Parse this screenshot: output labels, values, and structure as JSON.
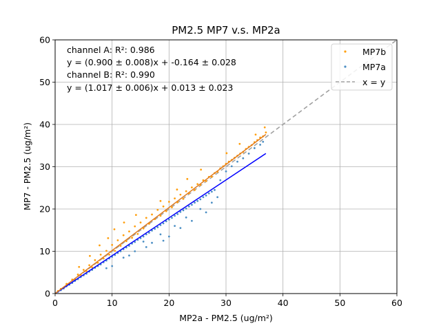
{
  "chart_data": {
    "type": "scatter",
    "title": "PM2.5 MP7 v.s. MP2a",
    "xlabel": "MP2a - PM2.5 (ug/m²)",
    "ylabel": "MP7 - PM2.5 (ug/m²)",
    "xlim": [
      0,
      60
    ],
    "ylim": [
      0,
      60
    ],
    "xticks": [
      "0",
      "10",
      "20",
      "30",
      "40",
      "50",
      "60"
    ],
    "yticks": [
      "0",
      "10",
      "20",
      "30",
      "40",
      "50",
      "60"
    ],
    "grid": true,
    "legend_position": "top-right",
    "annotations": [
      "channel A: R²: 0.986",
      "y = (0.900 ± 0.008)x + -0.164 ± 0.028",
      "channel B: R²: 0.990",
      "y = (1.017 ± 0.006)x + 0.013 ± 0.023"
    ],
    "series": [
      {
        "name": "MP7b",
        "kind": "scatter",
        "color": "#ff9f0f",
        "points": [
          [
            0.5,
            0.6
          ],
          [
            1,
            1.1
          ],
          [
            1.5,
            1.4
          ],
          [
            2,
            2.3
          ],
          [
            2.5,
            2.4
          ],
          [
            3,
            3.3
          ],
          [
            3.5,
            3.4
          ],
          [
            4,
            4.5
          ],
          [
            4.5,
            4.4
          ],
          [
            5,
            5.6
          ],
          [
            5.5,
            5.3
          ],
          [
            6,
            6.7
          ],
          [
            6.5,
            6.2
          ],
          [
            7,
            7.9
          ],
          [
            7.5,
            7.3
          ],
          [
            8,
            9.2
          ],
          [
            8.5,
            8.3
          ],
          [
            9,
            10.1
          ],
          [
            9.5,
            9.2
          ],
          [
            10,
            11.5
          ],
          [
            10.5,
            10.1
          ],
          [
            11,
            12.6
          ],
          [
            11.5,
            11.3
          ],
          [
            12,
            13.8
          ],
          [
            12.5,
            12.4
          ],
          [
            13,
            14.7
          ],
          [
            13.5,
            13.2
          ],
          [
            14,
            15.9
          ],
          [
            14.5,
            14.1
          ],
          [
            15,
            16.8
          ],
          [
            15.5,
            15.4
          ],
          [
            16,
            17.9
          ],
          [
            16.5,
            16.5
          ],
          [
            17,
            18.7
          ],
          [
            17.5,
            17.6
          ],
          [
            18,
            19.8
          ],
          [
            18.5,
            18.4
          ],
          [
            19,
            20.6
          ],
          [
            19.5,
            19.5
          ],
          [
            20,
            21.7
          ],
          [
            20.5,
            20.4
          ],
          [
            21,
            22.5
          ],
          [
            21.5,
            21.6
          ],
          [
            22,
            23.4
          ],
          [
            22.5,
            22.4
          ],
          [
            23,
            24.2
          ],
          [
            23.5,
            23.7
          ],
          [
            24,
            25.1
          ],
          [
            24.5,
            24.5
          ],
          [
            25,
            25.9
          ],
          [
            25.5,
            25.7
          ],
          [
            26,
            26.8
          ],
          [
            26.5,
            26.6
          ],
          [
            27,
            27.6
          ],
          [
            27.5,
            27.6
          ],
          [
            28,
            28.5
          ],
          [
            28.5,
            28.8
          ],
          [
            29,
            29.6
          ],
          [
            29.5,
            30.1
          ],
          [
            30,
            30.7
          ],
          [
            30.5,
            31.2
          ],
          [
            31,
            31.6
          ],
          [
            31.5,
            32.1
          ],
          [
            32,
            32.6
          ],
          [
            32.5,
            33.1
          ],
          [
            33,
            33.5
          ],
          [
            33.5,
            34.2
          ],
          [
            34,
            34.7
          ],
          [
            34.5,
            35.1
          ],
          [
            35,
            35.8
          ],
          [
            35.5,
            36.3
          ],
          [
            36,
            36.9
          ],
          [
            36.5,
            37.2
          ],
          [
            37,
            38.1
          ],
          [
            7.8,
            11.4
          ],
          [
            10.4,
            15.2
          ],
          [
            12.1,
            16.8
          ],
          [
            14.2,
            18.6
          ],
          [
            18.5,
            21.9
          ],
          [
            21.4,
            24.6
          ],
          [
            23.2,
            27.1
          ],
          [
            25.6,
            29.3
          ],
          [
            30.1,
            33.2
          ],
          [
            32.4,
            35.4
          ],
          [
            35.2,
            37.6
          ],
          [
            36.8,
            39.3
          ],
          [
            4.2,
            6.3
          ],
          [
            6.1,
            8.9
          ],
          [
            9.3,
            13.1
          ]
        ]
      },
      {
        "name": "MP7a",
        "kind": "scatter",
        "color": "#4c8fc4",
        "points": [
          [
            0.5,
            0.4
          ],
          [
            1,
            0.8
          ],
          [
            1.5,
            1.2
          ],
          [
            2,
            1.7
          ],
          [
            2.5,
            2.1
          ],
          [
            3,
            2.5
          ],
          [
            3.5,
            3.0
          ],
          [
            4,
            3.4
          ],
          [
            4.5,
            3.9
          ],
          [
            5,
            4.3
          ],
          [
            5.5,
            4.7
          ],
          [
            6,
            5.2
          ],
          [
            6.5,
            5.6
          ],
          [
            7,
            6.1
          ],
          [
            7.5,
            6.5
          ],
          [
            8,
            6.9
          ],
          [
            8.5,
            7.4
          ],
          [
            9,
            7.8
          ],
          [
            9.5,
            8.3
          ],
          [
            10,
            8.7
          ],
          [
            10.5,
            9.1
          ],
          [
            11,
            9.6
          ],
          [
            11.5,
            10.0
          ],
          [
            12,
            10.5
          ],
          [
            12.5,
            10.9
          ],
          [
            13,
            11.3
          ],
          [
            13.5,
            11.8
          ],
          [
            14,
            12.2
          ],
          [
            14.5,
            12.7
          ],
          [
            15,
            13.1
          ],
          [
            15.5,
            13.5
          ],
          [
            16,
            14.0
          ],
          [
            16.5,
            14.4
          ],
          [
            17,
            14.9
          ],
          [
            17.5,
            15.3
          ],
          [
            18,
            15.7
          ],
          [
            18.5,
            16.2
          ],
          [
            19,
            16.6
          ],
          [
            19.5,
            17.1
          ],
          [
            20,
            17.5
          ],
          [
            20.5,
            17.9
          ],
          [
            21,
            18.4
          ],
          [
            21.5,
            18.8
          ],
          [
            22,
            19.3
          ],
          [
            22.5,
            19.7
          ],
          [
            23,
            20.1
          ],
          [
            23.5,
            20.6
          ],
          [
            24,
            21.0
          ],
          [
            24.5,
            21.5
          ],
          [
            25,
            21.9
          ],
          [
            25.5,
            22.3
          ],
          [
            26,
            22.8
          ],
          [
            26.5,
            23.2
          ],
          [
            27,
            23.7
          ],
          [
            27.5,
            24.1
          ],
          [
            28,
            24.5
          ],
          [
            29,
            26.8
          ],
          [
            30,
            28.9
          ],
          [
            31,
            30.1
          ],
          [
            32,
            31.2
          ],
          [
            33,
            32.0
          ],
          [
            34,
            33.1
          ],
          [
            35,
            34.4
          ],
          [
            36,
            35.2
          ],
          [
            36.5,
            35.9
          ],
          [
            10,
            6.5
          ],
          [
            12,
            8.5
          ],
          [
            14,
            10.0
          ],
          [
            15.5,
            12.3
          ],
          [
            17,
            12.0
          ],
          [
            18.5,
            14.0
          ],
          [
            20,
            13.5
          ],
          [
            21,
            16.0
          ],
          [
            22,
            15.5
          ],
          [
            23,
            18.0
          ],
          [
            24,
            17.2
          ],
          [
            25.5,
            20.0
          ],
          [
            26.5,
            19.2
          ],
          [
            27.5,
            21.5
          ],
          [
            28.5,
            22.8
          ],
          [
            19,
            12.5
          ],
          [
            16,
            11.0
          ],
          [
            13,
            9.0
          ],
          [
            9,
            6.0
          ]
        ]
      },
      {
        "name": "",
        "kind": "line",
        "color": "#e07b1e",
        "slope": 1.017,
        "intercept": 0.013,
        "x_range": [
          0,
          37
        ]
      },
      {
        "name": "",
        "kind": "line",
        "color": "#0000ff",
        "slope": 0.9,
        "intercept": -0.164,
        "x_range": [
          0,
          37
        ]
      },
      {
        "name": "x = y",
        "kind": "line",
        "color": "#a0a0a0",
        "dashed": true,
        "slope": 1,
        "intercept": 0,
        "x_range": [
          0,
          60
        ]
      }
    ]
  }
}
